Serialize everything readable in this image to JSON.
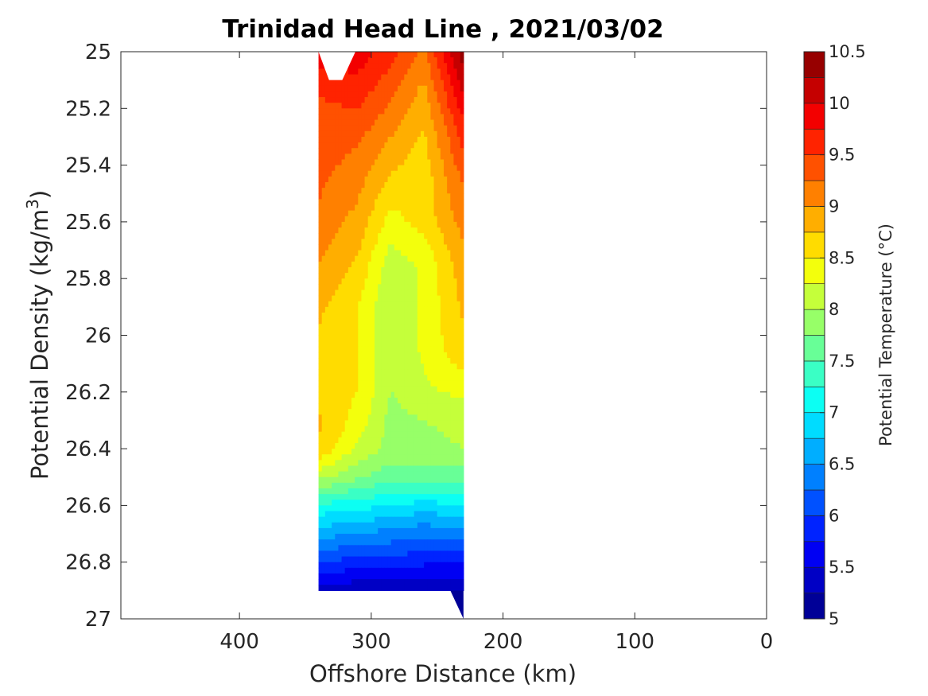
{
  "chart_data": {
    "type": "heatmap",
    "subtype": "filled-contour",
    "title": "Trinidad Head Line , 2021/03/02",
    "xlabel": "Offshore Distance (km)",
    "ylabel": "Potential Density (kg/m",
    "ylabel_sup": "3",
    "ylabel_close": ")",
    "xlim": [
      490,
      0
    ],
    "x_reversed": true,
    "x_ticks": [
      "400",
      "300",
      "200",
      "100",
      "0"
    ],
    "ylim": [
      25,
      27
    ],
    "y_reversed": true,
    "y_ticks": [
      "25",
      "25.2",
      "25.4",
      "25.6",
      "25.8",
      "26",
      "26.2",
      "26.4",
      "26.6",
      "26.8",
      "27"
    ],
    "colorbar": {
      "label": "Potential Temperature (°C)",
      "range": [
        5,
        10.5
      ],
      "step": 0.25,
      "ticks": [
        "5",
        "5.5",
        "6",
        "6.5",
        "7",
        "7.5",
        "8",
        "8.5",
        "9",
        "9.5",
        "10",
        "10.5"
      ]
    },
    "data_extent": {
      "x_offshore": 340,
      "x_inshore": 230,
      "sigma_top": 25,
      "sigma_bottom": 26.9
    },
    "x": [
      340,
      310,
      285,
      260,
      230
    ],
    "y": [
      25.0,
      25.15,
      25.3,
      25.45,
      25.6,
      25.75,
      25.9,
      26.05,
      26.2,
      26.3,
      26.4,
      26.5,
      26.6,
      26.7,
      26.8,
      26.9
    ],
    "z": [
      [
        9.9,
        9.9,
        9.6,
        9.2,
        10.4
      ],
      [
        9.5,
        9.6,
        9.3,
        8.9,
        10.0
      ],
      [
        9.4,
        9.3,
        9.0,
        8.7,
        9.6
      ],
      [
        9.3,
        9.1,
        8.7,
        8.6,
        9.3
      ],
      [
        9.2,
        8.9,
        8.4,
        8.6,
        9.1
      ],
      [
        9.0,
        8.7,
        8.1,
        8.3,
        8.9
      ],
      [
        8.8,
        8.5,
        8.0,
        8.3,
        8.8
      ],
      [
        8.7,
        8.5,
        8.0,
        8.3,
        8.7
      ],
      [
        8.6,
        8.5,
        8.0,
        8.2,
        8.3
      ],
      [
        8.8,
        8.4,
        7.9,
        8.0,
        8.1
      ],
      [
        8.7,
        8.2,
        7.9,
        7.9,
        8.0
      ],
      [
        8.1,
        7.8,
        7.6,
        7.6,
        7.6
      ],
      [
        7.2,
        7.1,
        7.0,
        6.9,
        7.0
      ],
      [
        6.6,
        6.5,
        6.4,
        6.3,
        6.4
      ],
      [
        6.0,
        5.9,
        5.9,
        5.8,
        5.8
      ],
      [
        5.4,
        5.3,
        5.3,
        5.3,
        5.2
      ]
    ]
  }
}
